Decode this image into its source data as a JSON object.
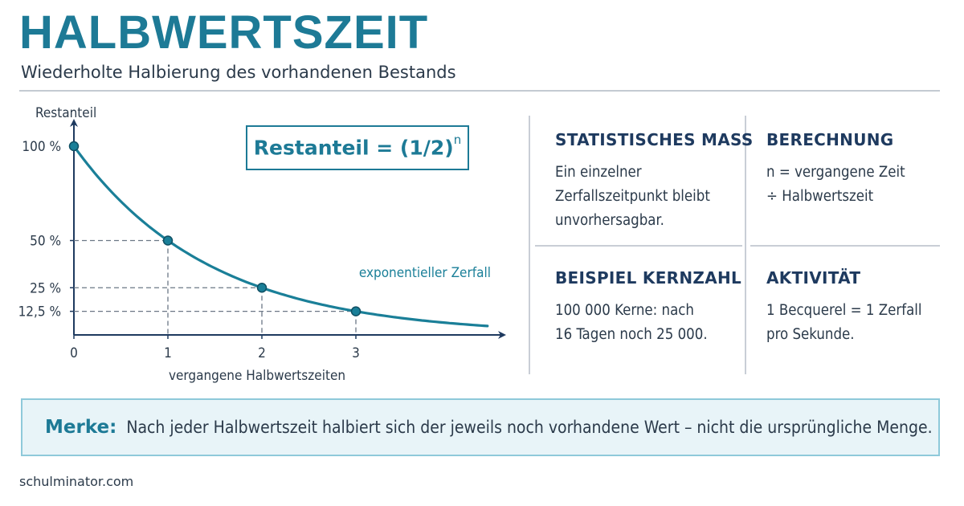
{
  "header": {
    "title": "HALBWERTSZEIT",
    "subtitle": "Wiederholte Halbierung des vorhandenen Bestands"
  },
  "formula": {
    "base": "Restanteil = (1/2)",
    "exponent": "n"
  },
  "chart_data": {
    "type": "line",
    "ylabel": "Restanteil",
    "xlabel": "vergangene Halbwertszeiten",
    "curve_label": "exponentieller Zerfall",
    "x_ticks": [
      "0",
      "1",
      "2",
      "3"
    ],
    "y_ticks": [
      "100 %",
      "50 %",
      "25 %",
      "12,5 %"
    ],
    "series": [
      {
        "x": [
          0,
          1,
          2,
          3
        ],
        "y": [
          100,
          50,
          25,
          12.5
        ]
      }
    ],
    "xlim": [
      0,
      4.4
    ],
    "ylim": [
      0,
      100
    ],
    "grid": false,
    "colors": {
      "curve": "#1a7f98",
      "point": "#1a7f98",
      "guides": "#6b7785",
      "axis": "#1e3a5f"
    }
  },
  "panels": [
    {
      "heading": "STATISTISCHES MASS",
      "body": "Ein einzelner\nZerfallszeitpunkt bleibt\nunvorhersagbar."
    },
    {
      "heading": "BERECHNUNG",
      "body": "n = vergangene Zeit\n÷ Halbwertszeit"
    },
    {
      "heading": "BEISPIEL KERNZAHL",
      "body": "100 000 Kerne: nach\n16 Tagen noch 25 000."
    },
    {
      "heading": "AKTIVITÄT",
      "body": "1 Becquerel = 1 Zerfall\npro Sekunde."
    }
  ],
  "note": {
    "label": "Merke:",
    "text": "Nach jeder Halbwertszeit halbiert sich der jeweils noch vorhandene Wert – nicht die ursprüngliche Menge."
  },
  "footer": {
    "text": "schulminator.com"
  },
  "colors": {
    "accent": "#1d7a96",
    "text": "#1e3a5f",
    "note_bg": "#e8f4f8"
  }
}
